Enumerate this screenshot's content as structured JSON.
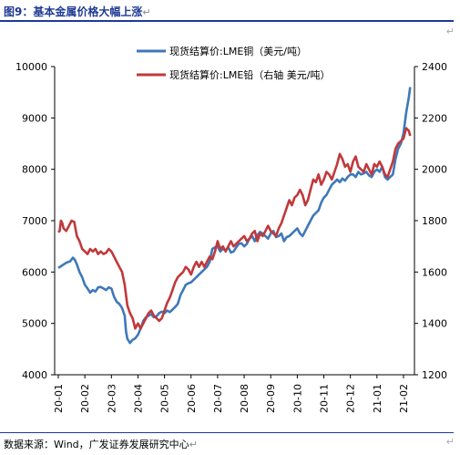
{
  "header": {
    "title": "图9：基本金属价格大幅上涨"
  },
  "footer": {
    "source": "数据来源：Wind，广发证券发展研究中心"
  },
  "colors": {
    "copper": "#3e78b9",
    "lead": "#c0393b",
    "title": "#1f3a93"
  },
  "chart_data": {
    "type": "line",
    "title": "",
    "x": [
      "20-01",
      "20-02",
      "20-03",
      "20-04",
      "20-05",
      "20-06",
      "20-07",
      "20-08",
      "20-09",
      "20-10",
      "20-11",
      "20-12",
      "21-01",
      "21-02"
    ],
    "y_left": {
      "ticks": [
        "4000",
        "5000",
        "6000",
        "7000",
        "8000",
        "9000",
        "10000"
      ],
      "range": [
        4000,
        10000
      ]
    },
    "y_right": {
      "ticks": [
        "1200",
        "1400",
        "1600",
        "1800",
        "2000",
        "2200",
        "2400"
      ],
      "range": [
        1200,
        2400
      ]
    },
    "legend_position": "top-center",
    "series": [
      {
        "name": "现货结算价:LME铜（美元/吨）",
        "axis": "left",
        "color": "#3e78b9",
        "values": [
          [
            0.0,
            6080
          ],
          [
            0.15,
            6130
          ],
          [
            0.3,
            6180
          ],
          [
            0.45,
            6210
          ],
          [
            0.55,
            6280
          ],
          [
            0.62,
            6240
          ],
          [
            0.7,
            6150
          ],
          [
            0.8,
            6000
          ],
          [
            0.9,
            5900
          ],
          [
            1.0,
            5750
          ],
          [
            1.1,
            5680
          ],
          [
            1.2,
            5600
          ],
          [
            1.3,
            5650
          ],
          [
            1.4,
            5620
          ],
          [
            1.5,
            5700
          ],
          [
            1.6,
            5710
          ],
          [
            1.7,
            5680
          ],
          [
            1.8,
            5650
          ],
          [
            1.9,
            5700
          ],
          [
            2.0,
            5680
          ],
          [
            2.1,
            5520
          ],
          [
            2.2,
            5420
          ],
          [
            2.3,
            5380
          ],
          [
            2.4,
            5300
          ],
          [
            2.5,
            5150
          ],
          [
            2.55,
            4850
          ],
          [
            2.6,
            4700
          ],
          [
            2.7,
            4620
          ],
          [
            2.8,
            4680
          ],
          [
            2.9,
            4710
          ],
          [
            3.0,
            4780
          ],
          [
            3.1,
            4900
          ],
          [
            3.2,
            5050
          ],
          [
            3.3,
            5120
          ],
          [
            3.4,
            5150
          ],
          [
            3.5,
            5180
          ],
          [
            3.6,
            5120
          ],
          [
            3.7,
            5140
          ],
          [
            3.8,
            5200
          ],
          [
            3.9,
            5230
          ],
          [
            4.0,
            5200
          ],
          [
            4.1,
            5250
          ],
          [
            4.2,
            5220
          ],
          [
            4.3,
            5270
          ],
          [
            4.4,
            5320
          ],
          [
            4.5,
            5380
          ],
          [
            4.6,
            5550
          ],
          [
            4.7,
            5650
          ],
          [
            4.8,
            5750
          ],
          [
            4.9,
            5780
          ],
          [
            5.0,
            5800
          ],
          [
            5.1,
            5850
          ],
          [
            5.2,
            5900
          ],
          [
            5.3,
            5950
          ],
          [
            5.4,
            6000
          ],
          [
            5.5,
            6050
          ],
          [
            5.6,
            6100
          ],
          [
            5.7,
            6200
          ],
          [
            5.8,
            6450
          ],
          [
            5.9,
            6480
          ],
          [
            6.0,
            6500
          ],
          [
            6.1,
            6400
          ],
          [
            6.2,
            6450
          ],
          [
            6.3,
            6420
          ],
          [
            6.4,
            6480
          ],
          [
            6.5,
            6380
          ],
          [
            6.6,
            6400
          ],
          [
            6.7,
            6480
          ],
          [
            6.8,
            6550
          ],
          [
            6.9,
            6560
          ],
          [
            7.0,
            6500
          ],
          [
            7.1,
            6550
          ],
          [
            7.2,
            6650
          ],
          [
            7.3,
            6700
          ],
          [
            7.4,
            6600
          ],
          [
            7.5,
            6720
          ],
          [
            7.6,
            6780
          ],
          [
            7.7,
            6750
          ],
          [
            7.8,
            6700
          ],
          [
            7.9,
            6650
          ],
          [
            8.0,
            6750
          ],
          [
            8.1,
            6800
          ],
          [
            8.2,
            6680
          ],
          [
            8.3,
            6700
          ],
          [
            8.4,
            6750
          ],
          [
            8.5,
            6600
          ],
          [
            8.6,
            6680
          ],
          [
            8.7,
            6700
          ],
          [
            8.8,
            6750
          ],
          [
            8.9,
            6800
          ],
          [
            9.0,
            6850
          ],
          [
            9.1,
            6750
          ],
          [
            9.2,
            6700
          ],
          [
            9.3,
            6800
          ],
          [
            9.4,
            6900
          ],
          [
            9.5,
            7000
          ],
          [
            9.6,
            7100
          ],
          [
            9.7,
            7150
          ],
          [
            9.8,
            7200
          ],
          [
            9.9,
            7350
          ],
          [
            10.0,
            7450
          ],
          [
            10.1,
            7500
          ],
          [
            10.2,
            7600
          ],
          [
            10.3,
            7700
          ],
          [
            10.4,
            7750
          ],
          [
            10.5,
            7800
          ],
          [
            10.6,
            7750
          ],
          [
            10.7,
            7820
          ],
          [
            10.8,
            7780
          ],
          [
            10.9,
            7850
          ],
          [
            11.0,
            7900
          ],
          [
            11.1,
            7900
          ],
          [
            11.2,
            7850
          ],
          [
            11.3,
            7950
          ],
          [
            11.4,
            7900
          ],
          [
            11.5,
            7920
          ],
          [
            11.6,
            7950
          ],
          [
            11.7,
            7880
          ],
          [
            11.8,
            7850
          ],
          [
            11.9,
            7950
          ],
          [
            12.0,
            8000
          ],
          [
            12.1,
            7950
          ],
          [
            12.2,
            8050
          ],
          [
            12.3,
            7850
          ],
          [
            12.4,
            7800
          ],
          [
            12.5,
            7850
          ],
          [
            12.6,
            7900
          ],
          [
            12.7,
            8200
          ],
          [
            12.8,
            8400
          ],
          [
            12.9,
            8500
          ],
          [
            13.0,
            8700
          ],
          [
            13.1,
            9100
          ],
          [
            13.2,
            9400
          ],
          [
            13.25,
            9600
          ]
        ]
      },
      {
        "name": "现货结算价:LME铅（右轴 美元/吨）",
        "axis": "right",
        "color": "#c0393b",
        "values": [
          [
            0.0,
            1755
          ],
          [
            0.05,
            1760
          ],
          [
            0.1,
            1800
          ],
          [
            0.15,
            1790
          ],
          [
            0.2,
            1770
          ],
          [
            0.3,
            1760
          ],
          [
            0.4,
            1780
          ],
          [
            0.5,
            1800
          ],
          [
            0.6,
            1795
          ],
          [
            0.7,
            1740
          ],
          [
            0.8,
            1720
          ],
          [
            0.9,
            1690
          ],
          [
            1.0,
            1680
          ],
          [
            1.1,
            1670
          ],
          [
            1.2,
            1690
          ],
          [
            1.3,
            1680
          ],
          [
            1.4,
            1690
          ],
          [
            1.5,
            1670
          ],
          [
            1.6,
            1680
          ],
          [
            1.7,
            1670
          ],
          [
            1.8,
            1675
          ],
          [
            1.9,
            1690
          ],
          [
            2.0,
            1680
          ],
          [
            2.1,
            1660
          ],
          [
            2.2,
            1640
          ],
          [
            2.3,
            1620
          ],
          [
            2.4,
            1600
          ],
          [
            2.5,
            1550
          ],
          [
            2.6,
            1470
          ],
          [
            2.7,
            1440
          ],
          [
            2.8,
            1420
          ],
          [
            2.9,
            1380
          ],
          [
            3.0,
            1400
          ],
          [
            3.1,
            1380
          ],
          [
            3.2,
            1400
          ],
          [
            3.3,
            1420
          ],
          [
            3.4,
            1440
          ],
          [
            3.5,
            1450
          ],
          [
            3.6,
            1430
          ],
          [
            3.7,
            1420
          ],
          [
            3.8,
            1410
          ],
          [
            3.9,
            1420
          ],
          [
            4.0,
            1450
          ],
          [
            4.1,
            1480
          ],
          [
            4.2,
            1500
          ],
          [
            4.3,
            1530
          ],
          [
            4.4,
            1560
          ],
          [
            4.5,
            1580
          ],
          [
            4.6,
            1590
          ],
          [
            4.7,
            1600
          ],
          [
            4.8,
            1620
          ],
          [
            4.9,
            1610
          ],
          [
            5.0,
            1590
          ],
          [
            5.1,
            1620
          ],
          [
            5.2,
            1640
          ],
          [
            5.3,
            1620
          ],
          [
            5.4,
            1640
          ],
          [
            5.5,
            1620
          ],
          [
            5.6,
            1640
          ],
          [
            5.7,
            1660
          ],
          [
            5.8,
            1650
          ],
          [
            5.9,
            1680
          ],
          [
            6.0,
            1720
          ],
          [
            6.1,
            1690
          ],
          [
            6.2,
            1700
          ],
          [
            6.3,
            1680
          ],
          [
            6.4,
            1700
          ],
          [
            6.5,
            1720
          ],
          [
            6.6,
            1700
          ],
          [
            6.7,
            1710
          ],
          [
            6.8,
            1720
          ],
          [
            6.9,
            1730
          ],
          [
            7.0,
            1740
          ],
          [
            7.1,
            1720
          ],
          [
            7.2,
            1730
          ],
          [
            7.3,
            1750
          ],
          [
            7.4,
            1760
          ],
          [
            7.5,
            1720
          ],
          [
            7.6,
            1750
          ],
          [
            7.7,
            1740
          ],
          [
            7.8,
            1760
          ],
          [
            7.9,
            1780
          ],
          [
            8.0,
            1760
          ],
          [
            8.1,
            1750
          ],
          [
            8.2,
            1740
          ],
          [
            8.3,
            1770
          ],
          [
            8.4,
            1790
          ],
          [
            8.5,
            1820
          ],
          [
            8.6,
            1850
          ],
          [
            8.7,
            1880
          ],
          [
            8.8,
            1860
          ],
          [
            8.9,
            1890
          ],
          [
            9.0,
            1900
          ],
          [
            9.1,
            1920
          ],
          [
            9.2,
            1900
          ],
          [
            9.3,
            1860
          ],
          [
            9.4,
            1880
          ],
          [
            9.5,
            1920
          ],
          [
            9.6,
            1960
          ],
          [
            9.7,
            1950
          ],
          [
            9.8,
            1980
          ],
          [
            9.9,
            1940
          ],
          [
            10.0,
            1960
          ],
          [
            10.1,
            1990
          ],
          [
            10.2,
            1980
          ],
          [
            10.3,
            1960
          ],
          [
            10.4,
            1990
          ],
          [
            10.5,
            2020
          ],
          [
            10.6,
            2060
          ],
          [
            10.7,
            2040
          ],
          [
            10.8,
            2010
          ],
          [
            10.9,
            2020
          ],
          [
            11.0,
            1990
          ],
          [
            11.1,
            2030
          ],
          [
            11.2,
            2050
          ],
          [
            11.3,
            2010
          ],
          [
            11.4,
            2000
          ],
          [
            11.5,
            1990
          ],
          [
            11.6,
            2020
          ],
          [
            11.7,
            2000
          ],
          [
            11.8,
            1980
          ],
          [
            11.9,
            2020
          ],
          [
            12.0,
            2010
          ],
          [
            12.1,
            2030
          ],
          [
            12.2,
            2010
          ],
          [
            12.3,
            1980
          ],
          [
            12.4,
            1970
          ],
          [
            12.5,
            2000
          ],
          [
            12.6,
            2030
          ],
          [
            12.7,
            2080
          ],
          [
            12.8,
            2100
          ],
          [
            12.9,
            2110
          ],
          [
            13.0,
            2120
          ],
          [
            13.1,
            2160
          ],
          [
            13.2,
            2150
          ],
          [
            13.25,
            2130
          ]
        ]
      }
    ]
  }
}
